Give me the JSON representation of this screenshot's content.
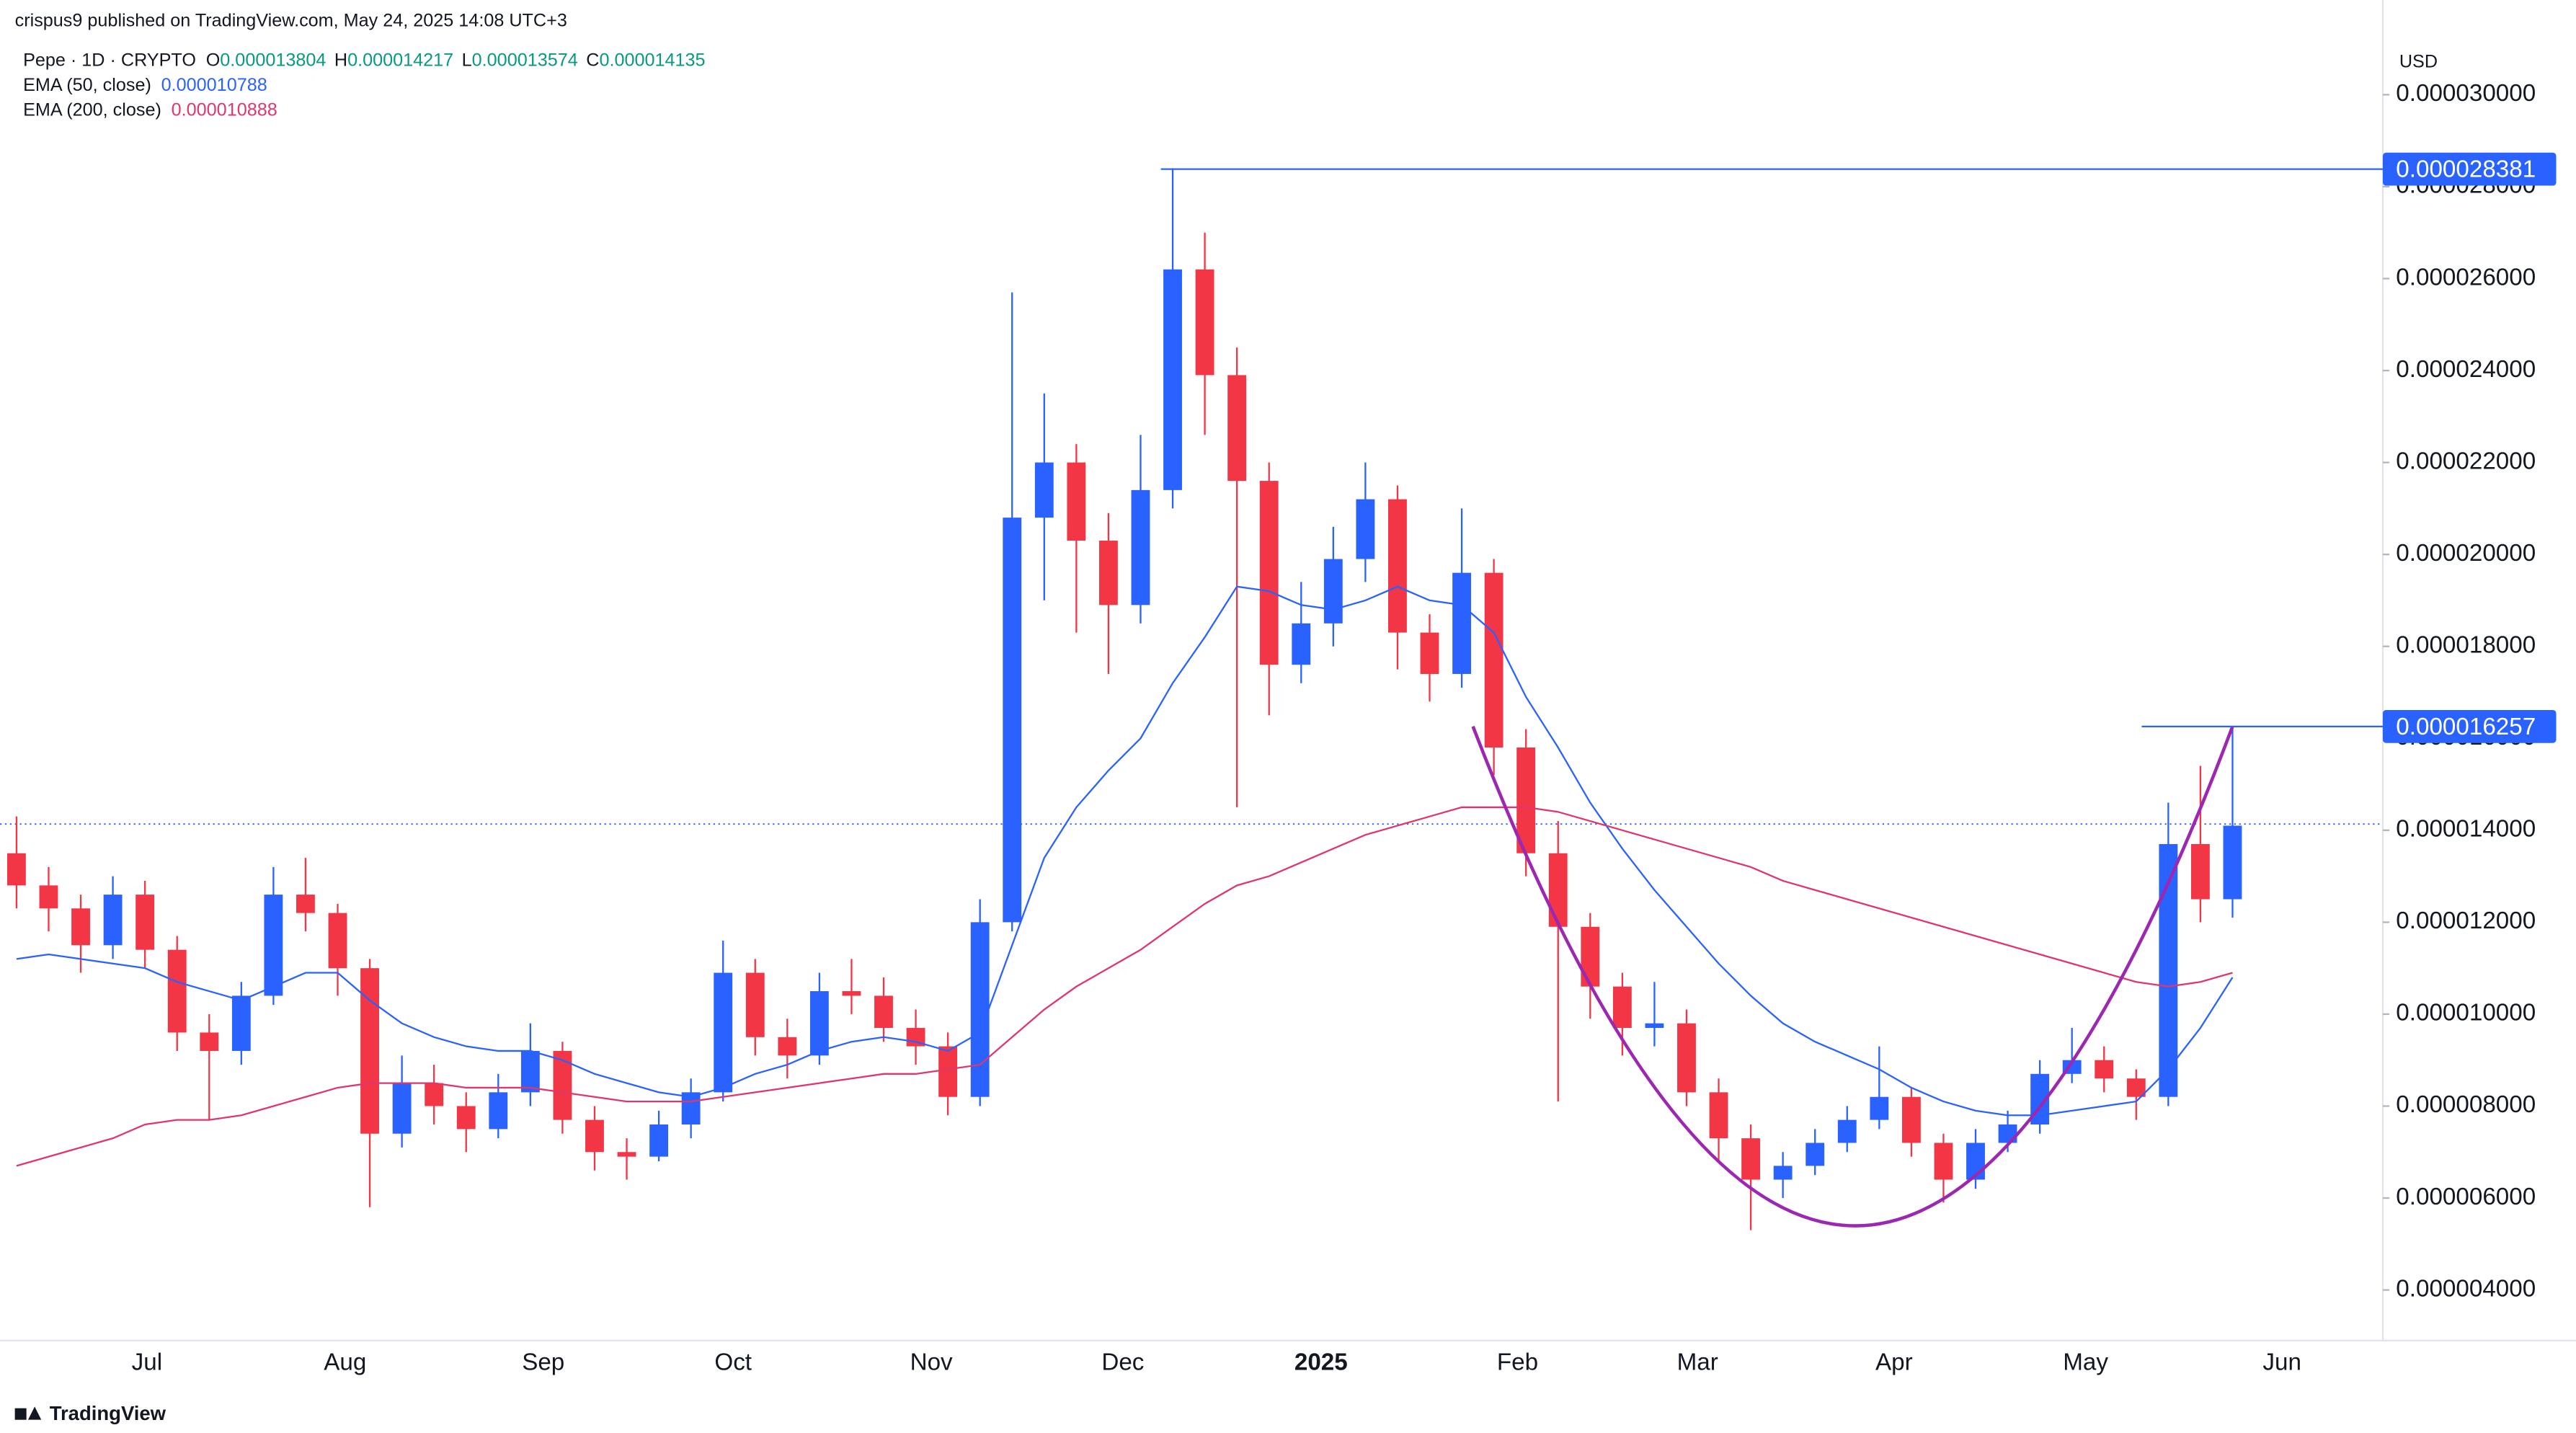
{
  "header": {
    "publisher": "crispus9 published on TradingView.com, May 24, 2025 14:08 UTC+3",
    "symbol": "Pepe · 1D · CRYPTO",
    "ohlc": [
      {
        "label": "O",
        "value": 1.3804e-05
      },
      {
        "label": "H",
        "value": 1.4217e-05
      },
      {
        "label": "L",
        "value": 1.3574e-05
      },
      {
        "label": "C",
        "value": 1.4135e-05
      }
    ],
    "currency": "USD",
    "logo": "TradingView"
  },
  "chart_data": {
    "type": "candlestick",
    "up_color": "#2962ff",
    "down_color": "#f23645",
    "open": [
      1.35e-05,
      1.28e-05,
      1.23e-05,
      1.15e-05,
      1.26e-05,
      1.14e-05,
      9.6e-06,
      9.2e-06,
      1.04e-05,
      1.26e-05,
      1.22e-05,
      1.1e-05,
      7.4e-06,
      8.5e-06,
      8e-06,
      7.5e-06,
      8.3e-06,
      9.2e-06,
      7.7e-06,
      7e-06,
      6.9e-06,
      7.6e-06,
      8.3e-06,
      1.09e-05,
      9.5e-06,
      9.1e-06,
      1.05e-05,
      1.04e-05,
      9.7e-06,
      9.3e-06,
      8.2e-06,
      1.2e-05,
      2.08e-05,
      2.2e-05,
      2.03e-05,
      1.89e-05,
      2.14e-05,
      2.62e-05,
      2.39e-05,
      2.16e-05,
      1.76e-05,
      1.85e-05,
      1.99e-05,
      2.12e-05,
      1.83e-05,
      1.74e-05,
      1.96e-05,
      1.58e-05,
      1.35e-05,
      1.19e-05,
      1.06e-05,
      9.7e-06,
      9.8e-06,
      8.3e-06,
      7.3e-06,
      6.4e-06,
      6.7e-06,
      7.2e-06,
      7.7e-06,
      8.2e-06,
      7.2e-06,
      6.4e-06,
      7.2e-06,
      7.6e-06,
      8.7e-06,
      9e-06,
      8.6e-06,
      8.2e-06,
      1.37e-05,
      1.25e-05
    ],
    "high": [
      1.43e-05,
      1.32e-05,
      1.26e-05,
      1.3e-05,
      1.29e-05,
      1.17e-05,
      1e-05,
      1.07e-05,
      1.32e-05,
      1.34e-05,
      1.24e-05,
      1.12e-05,
      9.1e-06,
      8.9e-06,
      8.3e-06,
      8.7e-06,
      9.8e-06,
      9.4e-06,
      8e-06,
      7.3e-06,
      7.9e-06,
      8.6e-06,
      1.16e-05,
      1.12e-05,
      9.9e-06,
      1.09e-05,
      1.12e-05,
      1.08e-05,
      1.01e-05,
      9.6e-06,
      1.25e-05,
      2.57e-05,
      2.35e-05,
      2.24e-05,
      2.09e-05,
      2.26e-05,
      2.84e-05,
      2.7e-05,
      2.45e-05,
      2.2e-05,
      1.94e-05,
      2.06e-05,
      2.2e-05,
      2.15e-05,
      1.87e-05,
      2.1e-05,
      1.99e-05,
      1.62e-05,
      1.42e-05,
      1.22e-05,
      1.09e-05,
      1.07e-05,
      1.01e-05,
      8.6e-06,
      7.6e-06,
      7e-06,
      7.5e-06,
      8e-06,
      9.3e-06,
      8.4e-06,
      7.4e-06,
      7.5e-06,
      7.9e-06,
      9e-06,
      9.7e-06,
      9.3e-06,
      8.8e-06,
      1.46e-05,
      1.54e-05,
      1.6257e-05
    ],
    "low": [
      1.23e-05,
      1.18e-05,
      1.09e-05,
      1.12e-05,
      1.1e-05,
      9.2e-06,
      7.7e-06,
      8.9e-06,
      1.02e-05,
      1.18e-05,
      1.04e-05,
      5.8e-06,
      7.1e-06,
      7.6e-06,
      7e-06,
      7.3e-06,
      8e-06,
      7.4e-06,
      6.6e-06,
      6.4e-06,
      6.8e-06,
      7.3e-06,
      8.1e-06,
      9.1e-06,
      8.6e-06,
      8.9e-06,
      1e-05,
      9.4e-06,
      8.9e-06,
      7.8e-06,
      8e-06,
      1.18e-05,
      1.9e-05,
      1.83e-05,
      1.74e-05,
      1.85e-05,
      2.1e-05,
      2.26e-05,
      1.45e-05,
      1.65e-05,
      1.72e-05,
      1.8e-05,
      1.94e-05,
      1.75e-05,
      1.68e-05,
      1.71e-05,
      1.52e-05,
      1.3e-05,
      8.1e-06,
      9.9e-06,
      9.1e-06,
      9.3e-06,
      8e-06,
      6.8e-06,
      5.3e-06,
      6e-06,
      6.5e-06,
      7e-06,
      7.5e-06,
      6.9e-06,
      5.9e-06,
      6.2e-06,
      7e-06,
      7.4e-06,
      8.5e-06,
      8.3e-06,
      7.7e-06,
      8e-06,
      1.2e-05,
      1.21e-05
    ],
    "close": [
      1.28e-05,
      1.23e-05,
      1.15e-05,
      1.26e-05,
      1.14e-05,
      9.6e-06,
      9.2e-06,
      1.04e-05,
      1.26e-05,
      1.22e-05,
      1.1e-05,
      7.4e-06,
      8.5e-06,
      8e-06,
      7.5e-06,
      8.3e-06,
      9.2e-06,
      7.7e-06,
      7e-06,
      6.9e-06,
      7.6e-06,
      8.3e-06,
      1.09e-05,
      9.5e-06,
      9.1e-06,
      1.05e-05,
      1.04e-05,
      9.7e-06,
      9.3e-06,
      8.2e-06,
      1.2e-05,
      2.08e-05,
      2.2e-05,
      2.03e-05,
      1.89e-05,
      2.14e-05,
      2.62e-05,
      2.39e-05,
      2.16e-05,
      1.76e-05,
      1.85e-05,
      1.99e-05,
      2.12e-05,
      1.83e-05,
      1.74e-05,
      1.96e-05,
      1.58e-05,
      1.35e-05,
      1.19e-05,
      1.06e-05,
      9.7e-06,
      9.8e-06,
      8.3e-06,
      7.3e-06,
      6.4e-06,
      6.7e-06,
      7.2e-06,
      7.7e-06,
      8.2e-06,
      7.2e-06,
      6.4e-06,
      7.2e-06,
      7.6e-06,
      8.7e-06,
      9e-06,
      8.6e-06,
      8.2e-06,
      1.37e-05,
      1.25e-05,
      1.41e-05
    ],
    "series": [
      {
        "name": "EMA (50, close)",
        "legend_value": 1.0788e-05,
        "color": "#2962ff",
        "values": [
          1.12e-05,
          1.13e-05,
          1.12e-05,
          1.11e-05,
          1.1e-05,
          1.07e-05,
          1.05e-05,
          1.03e-05,
          1.06e-05,
          1.09e-05,
          1.09e-05,
          1.03e-05,
          9.8e-06,
          9.5e-06,
          9.3e-06,
          9.2e-06,
          9.2e-06,
          9e-06,
          8.7e-06,
          8.5e-06,
          8.3e-06,
          8.2e-06,
          8.4e-06,
          8.7e-06,
          8.9e-06,
          9.2e-06,
          9.4e-06,
          9.5e-06,
          9.4e-06,
          9.2e-06,
          9.6e-06,
          1.15e-05,
          1.34e-05,
          1.45e-05,
          1.53e-05,
          1.6e-05,
          1.72e-05,
          1.82e-05,
          1.93e-05,
          1.92e-05,
          1.89e-05,
          1.88e-05,
          1.9e-05,
          1.93e-05,
          1.9e-05,
          1.89e-05,
          1.83e-05,
          1.69e-05,
          1.58e-05,
          1.46e-05,
          1.36e-05,
          1.27e-05,
          1.19e-05,
          1.11e-05,
          1.04e-05,
          9.8e-06,
          9.4e-06,
          9.1e-06,
          8.8e-06,
          8.4e-06,
          8.1e-06,
          7.9e-06,
          7.8e-06,
          7.8e-06,
          7.9e-06,
          8e-06,
          8.1e-06,
          8.8e-06,
          9.7e-06,
          1.08e-05
        ]
      },
      {
        "name": "EMA (200, close)",
        "legend_value": 1.0888e-05,
        "color": "#e0376b",
        "values": [
          6.7e-06,
          6.9e-06,
          7.1e-06,
          7.3e-06,
          7.6e-06,
          7.7e-06,
          7.7e-06,
          7.8e-06,
          8e-06,
          8.2e-06,
          8.4e-06,
          8.5e-06,
          8.5e-06,
          8.5e-06,
          8.4e-06,
          8.4e-06,
          8.4e-06,
          8.3e-06,
          8.2e-06,
          8.1e-06,
          8.1e-06,
          8.1e-06,
          8.2e-06,
          8.3e-06,
          8.4e-06,
          8.5e-06,
          8.6e-06,
          8.7e-06,
          8.7e-06,
          8.8e-06,
          8.9e-06,
          9.5e-06,
          1.01e-05,
          1.06e-05,
          1.1e-05,
          1.14e-05,
          1.19e-05,
          1.24e-05,
          1.28e-05,
          1.3e-05,
          1.33e-05,
          1.36e-05,
          1.39e-05,
          1.41e-05,
          1.43e-05,
          1.45e-05,
          1.45e-05,
          1.45e-05,
          1.44e-05,
          1.42e-05,
          1.4e-05,
          1.38e-05,
          1.36e-05,
          1.34e-05,
          1.32e-05,
          1.29e-05,
          1.27e-05,
          1.25e-05,
          1.23e-05,
          1.21e-05,
          1.19e-05,
          1.17e-05,
          1.15e-05,
          1.13e-05,
          1.11e-05,
          1.09e-05,
          1.07e-05,
          1.06e-05,
          1.07e-05,
          1.09e-05
        ]
      }
    ],
    "ylim": [
      2.9e-06,
      3.206e-05
    ],
    "yticks": [
      {
        "value": 4e-06,
        "label": "0.000004000"
      },
      {
        "value": 6e-06,
        "label": "0.000006000"
      },
      {
        "value": 8e-06,
        "label": "0.000008000"
      },
      {
        "value": 1e-05,
        "label": "0.000010000"
      },
      {
        "value": 1.2e-05,
        "label": "0.000012000"
      },
      {
        "value": 1.4e-05,
        "label": "0.000014000"
      },
      {
        "value": 1.6e-05,
        "label": "0.000016000"
      },
      {
        "value": 1.8e-05,
        "label": "0.000018000"
      },
      {
        "value": 2e-05,
        "label": "0.000020000"
      },
      {
        "value": 2.2e-05,
        "label": "0.000022000"
      },
      {
        "value": 2.4e-05,
        "label": "0.000024000"
      },
      {
        "value": 2.6e-05,
        "label": "0.000026000"
      },
      {
        "value": 2.8e-05,
        "label": "0.000028000"
      },
      {
        "value": 3e-05,
        "label": "0.000030000"
      }
    ],
    "x_labels": [
      "Jul",
      "Aug",
      "Sep",
      "Oct",
      "Nov",
      "Dec",
      "2025",
      "Feb",
      "Mar",
      "Apr",
      "May",
      "Jun"
    ],
    "levels": [
      2.8381e-05,
      1.6257e-05
    ],
    "level_color": "#2962ff",
    "last_price": 1.4135e-05,
    "grid": false
  }
}
